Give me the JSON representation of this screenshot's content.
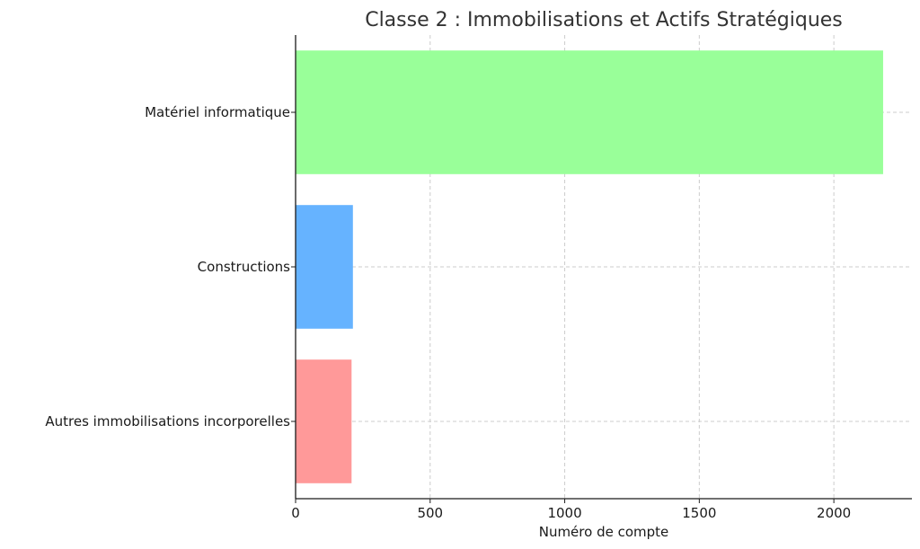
{
  "chart_data": {
    "type": "bar",
    "orientation": "horizontal",
    "title": "Classe 2 : Immobilisations et Actifs Stratégiques",
    "xlabel": "Numéro de compte",
    "ylabel": "",
    "categories": [
      "Autres immobilisations incorporelles",
      "Constructions",
      "Matériel informatique"
    ],
    "values": [
      208,
      213,
      2183
    ],
    "colors": [
      "#ff9999",
      "#66b3ff",
      "#99ff99"
    ],
    "xlim": [
      0,
      2290
    ],
    "xticks": [
      0,
      500,
      1000,
      1500,
      2000
    ],
    "xtick_labels": [
      "0",
      "500",
      "1000",
      "1500",
      "2000"
    ],
    "grid": true
  }
}
